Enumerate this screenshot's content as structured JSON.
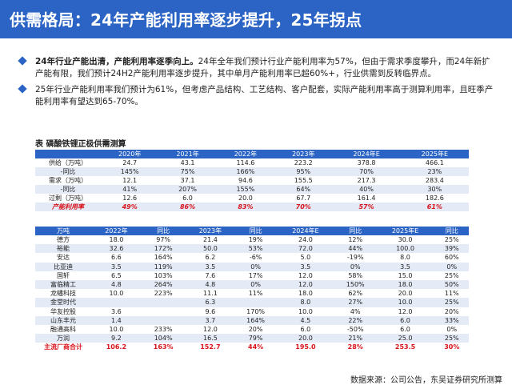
{
  "header": {
    "title": "供需格局：24年产能利用率逐步提升，25年拐点"
  },
  "bullets": [
    {
      "bold": "24年行业产能出清，产能利用率逐季向上。",
      "text": "24年全年我们预计行业产能利用率为57%，但由于需求季度攀升，而24年新扩产能有限，我们预计24H2产能利用率逐步提升，其中单月产能利用率已超60%+，行业供需到反转临界点。"
    },
    {
      "bold": "",
      "text": "25年行业产能利用率我们预计为61%，但考虑产品结构、工艺结构、客户配套，实际产能利用率高于测算利用率，且旺季产能利用率有望达到65-70%。"
    }
  ],
  "table_title": "表  磷酸铁锂正极供需测算",
  "supply_table": {
    "headers": [
      "",
      "2020年",
      "2021年",
      "2022年",
      "2023年",
      "2024年E",
      "2025年E"
    ],
    "rows": [
      [
        "供给（万吨）",
        "24.7",
        "43.1",
        "114.6",
        "223.2",
        "378.8",
        "466.1"
      ],
      [
        "-同比",
        "145%",
        "75%",
        "166%",
        "95%",
        "70%",
        "23%"
      ],
      [
        "需求（万吨）",
        "12.1",
        "37.1",
        "94.6",
        "155.5",
        "217.3",
        "283.4"
      ],
      [
        "-同比",
        "41%",
        "207%",
        "155%",
        "64%",
        "40%",
        "30%"
      ],
      [
        "过剩（万吨）",
        "12.6",
        "6.0",
        "20.0",
        "67.7",
        "161.4",
        "182.6"
      ],
      [
        "产能利用率",
        "49%",
        "86%",
        "83%",
        "70%",
        "57%",
        "61%"
      ]
    ]
  },
  "company_table": {
    "headers": [
      "万吨",
      "2022年",
      "同比",
      "2023年",
      "同比",
      "2024年E",
      "同比",
      "2025年E",
      "同比"
    ],
    "rows": [
      [
        "德方",
        "18.0",
        "97%",
        "21.4",
        "19%",
        "24.0",
        "12%",
        "30.0",
        "25%"
      ],
      [
        "裕能",
        "32.6",
        "172%",
        "50.0",
        "53%",
        "72.0",
        "44%",
        "100.0",
        "39%"
      ],
      [
        "安达",
        "6.6",
        "164%",
        "6.2",
        "-6%",
        "5.0",
        "-19%",
        "8.0",
        "60%"
      ],
      [
        "比亚迪",
        "3.5",
        "119%",
        "3.5",
        "0%",
        "3.5",
        "0%",
        "3.5",
        "0%"
      ],
      [
        "国轩",
        "6.5",
        "103%",
        "7.6",
        "17%",
        "12.0",
        "58%",
        "15.0",
        "25%"
      ],
      [
        "富临精工",
        "4.8",
        "264%",
        "4.8",
        "0%",
        "12.0",
        "150%",
        "18.0",
        "50%"
      ],
      [
        "龙蟠科技",
        "10.0",
        "223%",
        "11.1",
        "11%",
        "18.0",
        "62%",
        "20.0",
        "11%"
      ],
      [
        "金堂时代",
        "",
        "",
        "6.3",
        "",
        "8.0",
        "27%",
        "10.0",
        "25%"
      ],
      [
        "华友控股",
        "3.6",
        "",
        "9.6",
        "170%",
        "10.0",
        "4%",
        "12.0",
        "20%"
      ],
      [
        "山东丰元",
        "1.4",
        "",
        "3.7",
        "164%",
        "4.5",
        "22%",
        "6.0",
        "33%"
      ],
      [
        "融通高科",
        "10.0",
        "233%",
        "12.0",
        "20%",
        "6.0",
        "-50%",
        "6.0",
        "0%"
      ],
      [
        "万润",
        "9.2",
        "104%",
        "16.5",
        "79%",
        "20.0",
        "21%",
        "25.0",
        "25%"
      ],
      [
        "主流厂商合计",
        "106.2",
        "163%",
        "152.7",
        "44%",
        "195.0",
        "28%",
        "253.5",
        "30%"
      ]
    ]
  },
  "source": "数据来源：公司公告，东吴证券研究所测算",
  "colors": {
    "accent": "#2b64c4",
    "highlight": "#d9141b",
    "stripe": "#e4ebf6"
  }
}
